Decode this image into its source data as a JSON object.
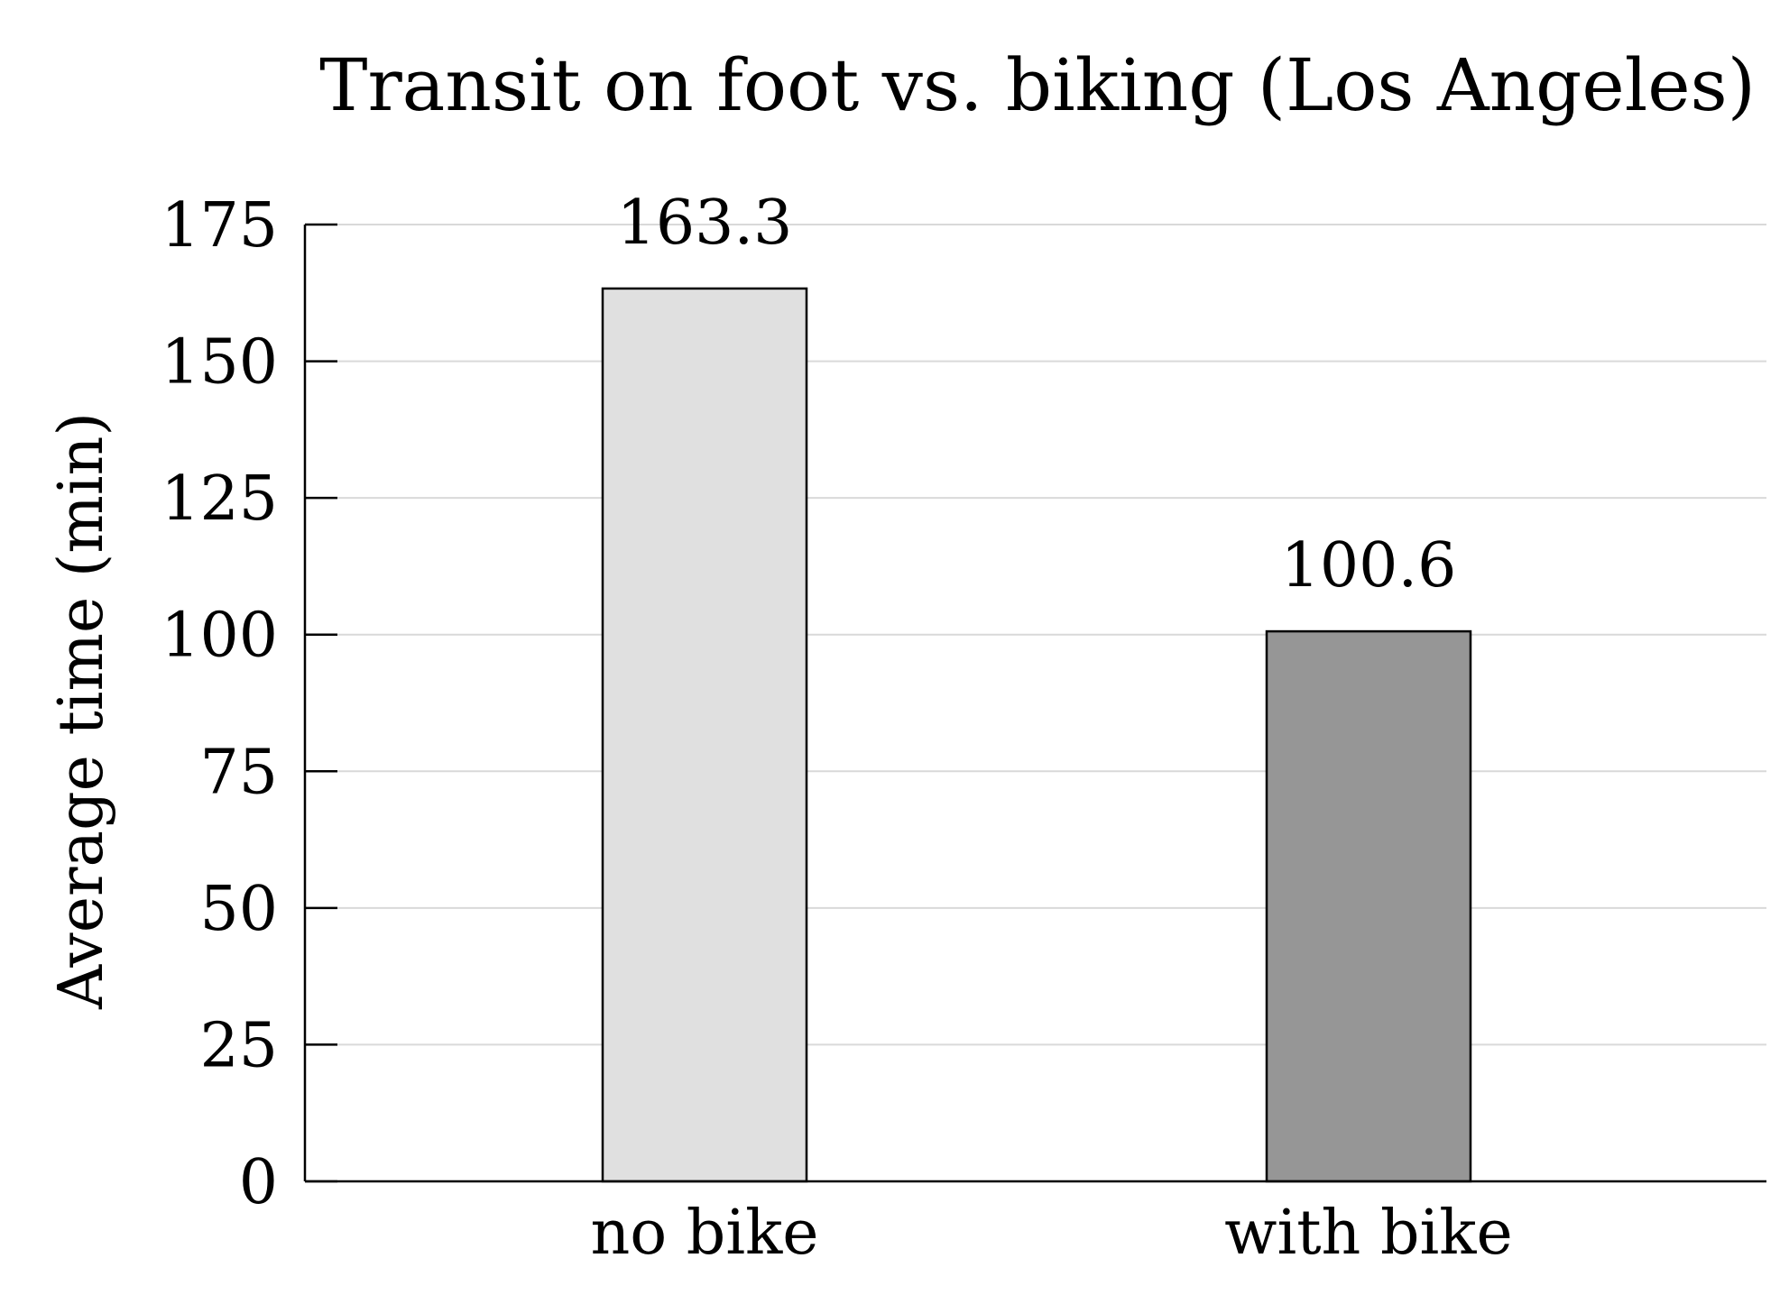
{
  "chart_data": {
    "type": "bar",
    "title": "Transit on foot vs. biking (Los Angeles)",
    "xlabel": "",
    "ylabel": "Average time (min)",
    "categories": [
      "no bike",
      "with bike"
    ],
    "values": [
      163.3,
      100.6
    ],
    "data_labels": [
      "163.3",
      "100.6"
    ],
    "bar_colors": [
      "#e0e0e0",
      "#969696"
    ],
    "ylim": [
      0,
      175
    ],
    "yticks": [
      0,
      25,
      50,
      75,
      100,
      125,
      150,
      175
    ],
    "ytick_labels": [
      "0",
      "25",
      "50",
      "75",
      "100",
      "125",
      "150",
      "175"
    ],
    "grid": "horizontal",
    "legend": "none"
  }
}
